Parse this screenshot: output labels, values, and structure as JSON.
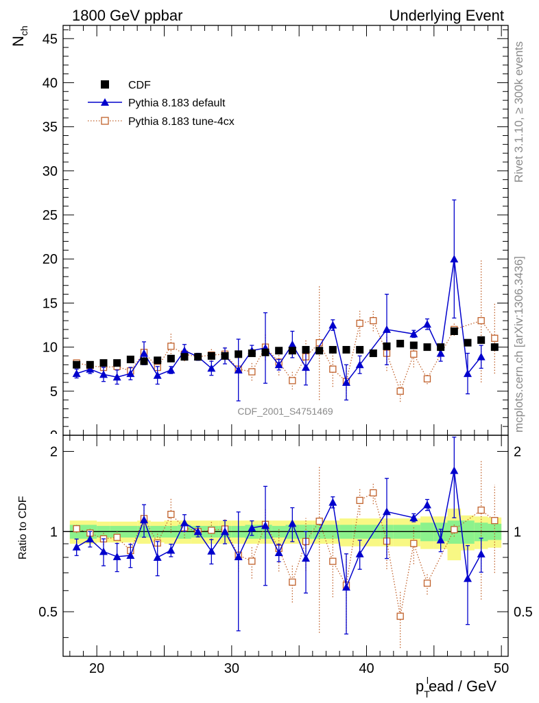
{
  "header": {
    "left": "1800 GeV ppbar",
    "right": "Underlying Event"
  },
  "side_labels": {
    "rivet": "Rivet 3.1.10, ≥ 300k events",
    "mcplots": "mcplots.cern.ch [arXiv:1306.3436]"
  },
  "analysis_id": "CDF_2001_S4751469",
  "colors": {
    "cdf": "#000000",
    "default": "#0000cc",
    "tune": "#c0602a",
    "band_inner": "#8cf28c",
    "band_outer": "#f8f884"
  },
  "chart_data": {
    "type": "scatter",
    "xlabel": "p_T^lead / GeV",
    "xlabel_parts": {
      "base": "p",
      "sub": "T",
      "sup": "l",
      "rest": "ead / GeV"
    },
    "xlim": [
      17.5,
      50.5
    ],
    "x_ticks": [
      20,
      25,
      30,
      35,
      40,
      45,
      50
    ],
    "x_tick_labels": [
      "20",
      "30",
      "40",
      "50"
    ],
    "main": {
      "ylabel": "N",
      "ylabel_sub": "ch",
      "ylim": [
        0,
        46.5
      ],
      "y_ticks": [
        0,
        5,
        10,
        15,
        20,
        25,
        30,
        35,
        40,
        45
      ],
      "y_tick_labels": [
        "0",
        "5",
        "10",
        "15",
        "20",
        "25",
        "30",
        "35",
        "40",
        "45"
      ]
    },
    "ratio": {
      "ylabel": "Ratio to CDF",
      "ylim": [
        0.34,
        2.3
      ],
      "y_ticks": [
        0.5,
        1,
        2
      ],
      "y_tick_labels": [
        "0.5",
        "1",
        "2"
      ]
    },
    "x": [
      18.5,
      19.5,
      20.5,
      21.5,
      22.5,
      23.5,
      24.5,
      25.5,
      26.5,
      27.5,
      28.5,
      29.5,
      30.5,
      31.5,
      32.5,
      33.5,
      34.5,
      35.5,
      36.5,
      37.5,
      38.5,
      39.5,
      40.5,
      41.5,
      42.5,
      43.5,
      44.5,
      45.5,
      46.5,
      47.5,
      48.5,
      49.5
    ],
    "legend": [
      "CDF",
      "Pythia 8.183 default",
      "Pythia 8.183 tune-4cx"
    ],
    "series": [
      {
        "name": "CDF",
        "style": "marker",
        "values": [
          8.0,
          8.0,
          8.2,
          8.2,
          8.6,
          8.4,
          8.5,
          8.7,
          8.9,
          8.9,
          9.0,
          9.0,
          9.2,
          9.3,
          9.4,
          9.6,
          9.6,
          9.7,
          9.6,
          9.7,
          9.7,
          9.7,
          9.3,
          10.1,
          10.4,
          10.2,
          10.0,
          10.0,
          11.8,
          10.5,
          10.8,
          10.0
        ]
      },
      {
        "name": "Pythia 8.183 default",
        "style": "line",
        "values": [
          7.0,
          7.5,
          6.9,
          6.6,
          7.0,
          9.3,
          6.8,
          7.4,
          9.6,
          8.9,
          7.6,
          9.0,
          7.4,
          9.6,
          9.9,
          8.0,
          10.3,
          7.7,
          null,
          12.5,
          6.0,
          8.0,
          null,
          12.0,
          null,
          11.5,
          12.6,
          9.3,
          20.0,
          7.0,
          8.9,
          null
        ],
        "errors": [
          0.5,
          0.5,
          0.8,
          0.8,
          0.7,
          1.3,
          1.0,
          0.4,
          0.7,
          0.4,
          0.8,
          0.9,
          3.5,
          0.6,
          4.0,
          0.6,
          1.5,
          2.0,
          null,
          0.6,
          2.0,
          1.0,
          null,
          4.0,
          null,
          0.4,
          0.6,
          0.9,
          6.7,
          2.3,
          1.3,
          null
        ]
      },
      {
        "name": "Pythia 8.183 tune-4cx",
        "style": "dotted",
        "values": [
          8.2,
          7.9,
          7.7,
          7.8,
          7.3,
          9.4,
          7.7,
          10.1,
          9.2,
          8.9,
          9.1,
          9.2,
          7.5,
          7.2,
          10.0,
          8.3,
          6.2,
          8.9,
          10.5,
          7.5,
          6.1,
          12.7,
          13.0,
          9.3,
          5.0,
          9.2,
          6.4,
          null,
          12.0,
          null,
          13.0,
          11.0
        ],
        "errors": [
          0.3,
          0.3,
          0.4,
          0.4,
          0.6,
          0.7,
          0.7,
          1.5,
          0.8,
          0.4,
          0.7,
          0.8,
          1.0,
          1.0,
          1.5,
          1.5,
          1.0,
          2.0,
          6.5,
          2.0,
          2.0,
          1.5,
          1.2,
          2.0,
          1.2,
          1.5,
          0.6,
          null,
          0.7,
          null,
          7.0,
          4.0
        ]
      }
    ],
    "band_inner": [
      0.06,
      0.06,
      0.05,
      0.05,
      0.05,
      0.05,
      0.05,
      0.05,
      0.06,
      0.05,
      0.05,
      0.05,
      0.05,
      0.06,
      0.06,
      0.05,
      0.06,
      0.06,
      0.06,
      0.06,
      0.06,
      0.06,
      0.06,
      0.06,
      0.06,
      0.06,
      0.08,
      0.08,
      0.1,
      0.1,
      0.08,
      0.07
    ],
    "band_outer": [
      0.1,
      0.1,
      0.09,
      0.09,
      0.09,
      0.1,
      0.09,
      0.1,
      0.1,
      0.1,
      0.1,
      0.1,
      0.1,
      0.1,
      0.1,
      0.1,
      0.1,
      0.1,
      0.1,
      0.1,
      0.12,
      0.12,
      0.12,
      0.12,
      0.12,
      0.12,
      0.14,
      0.14,
      0.22,
      0.15,
      0.14,
      0.13
    ]
  }
}
